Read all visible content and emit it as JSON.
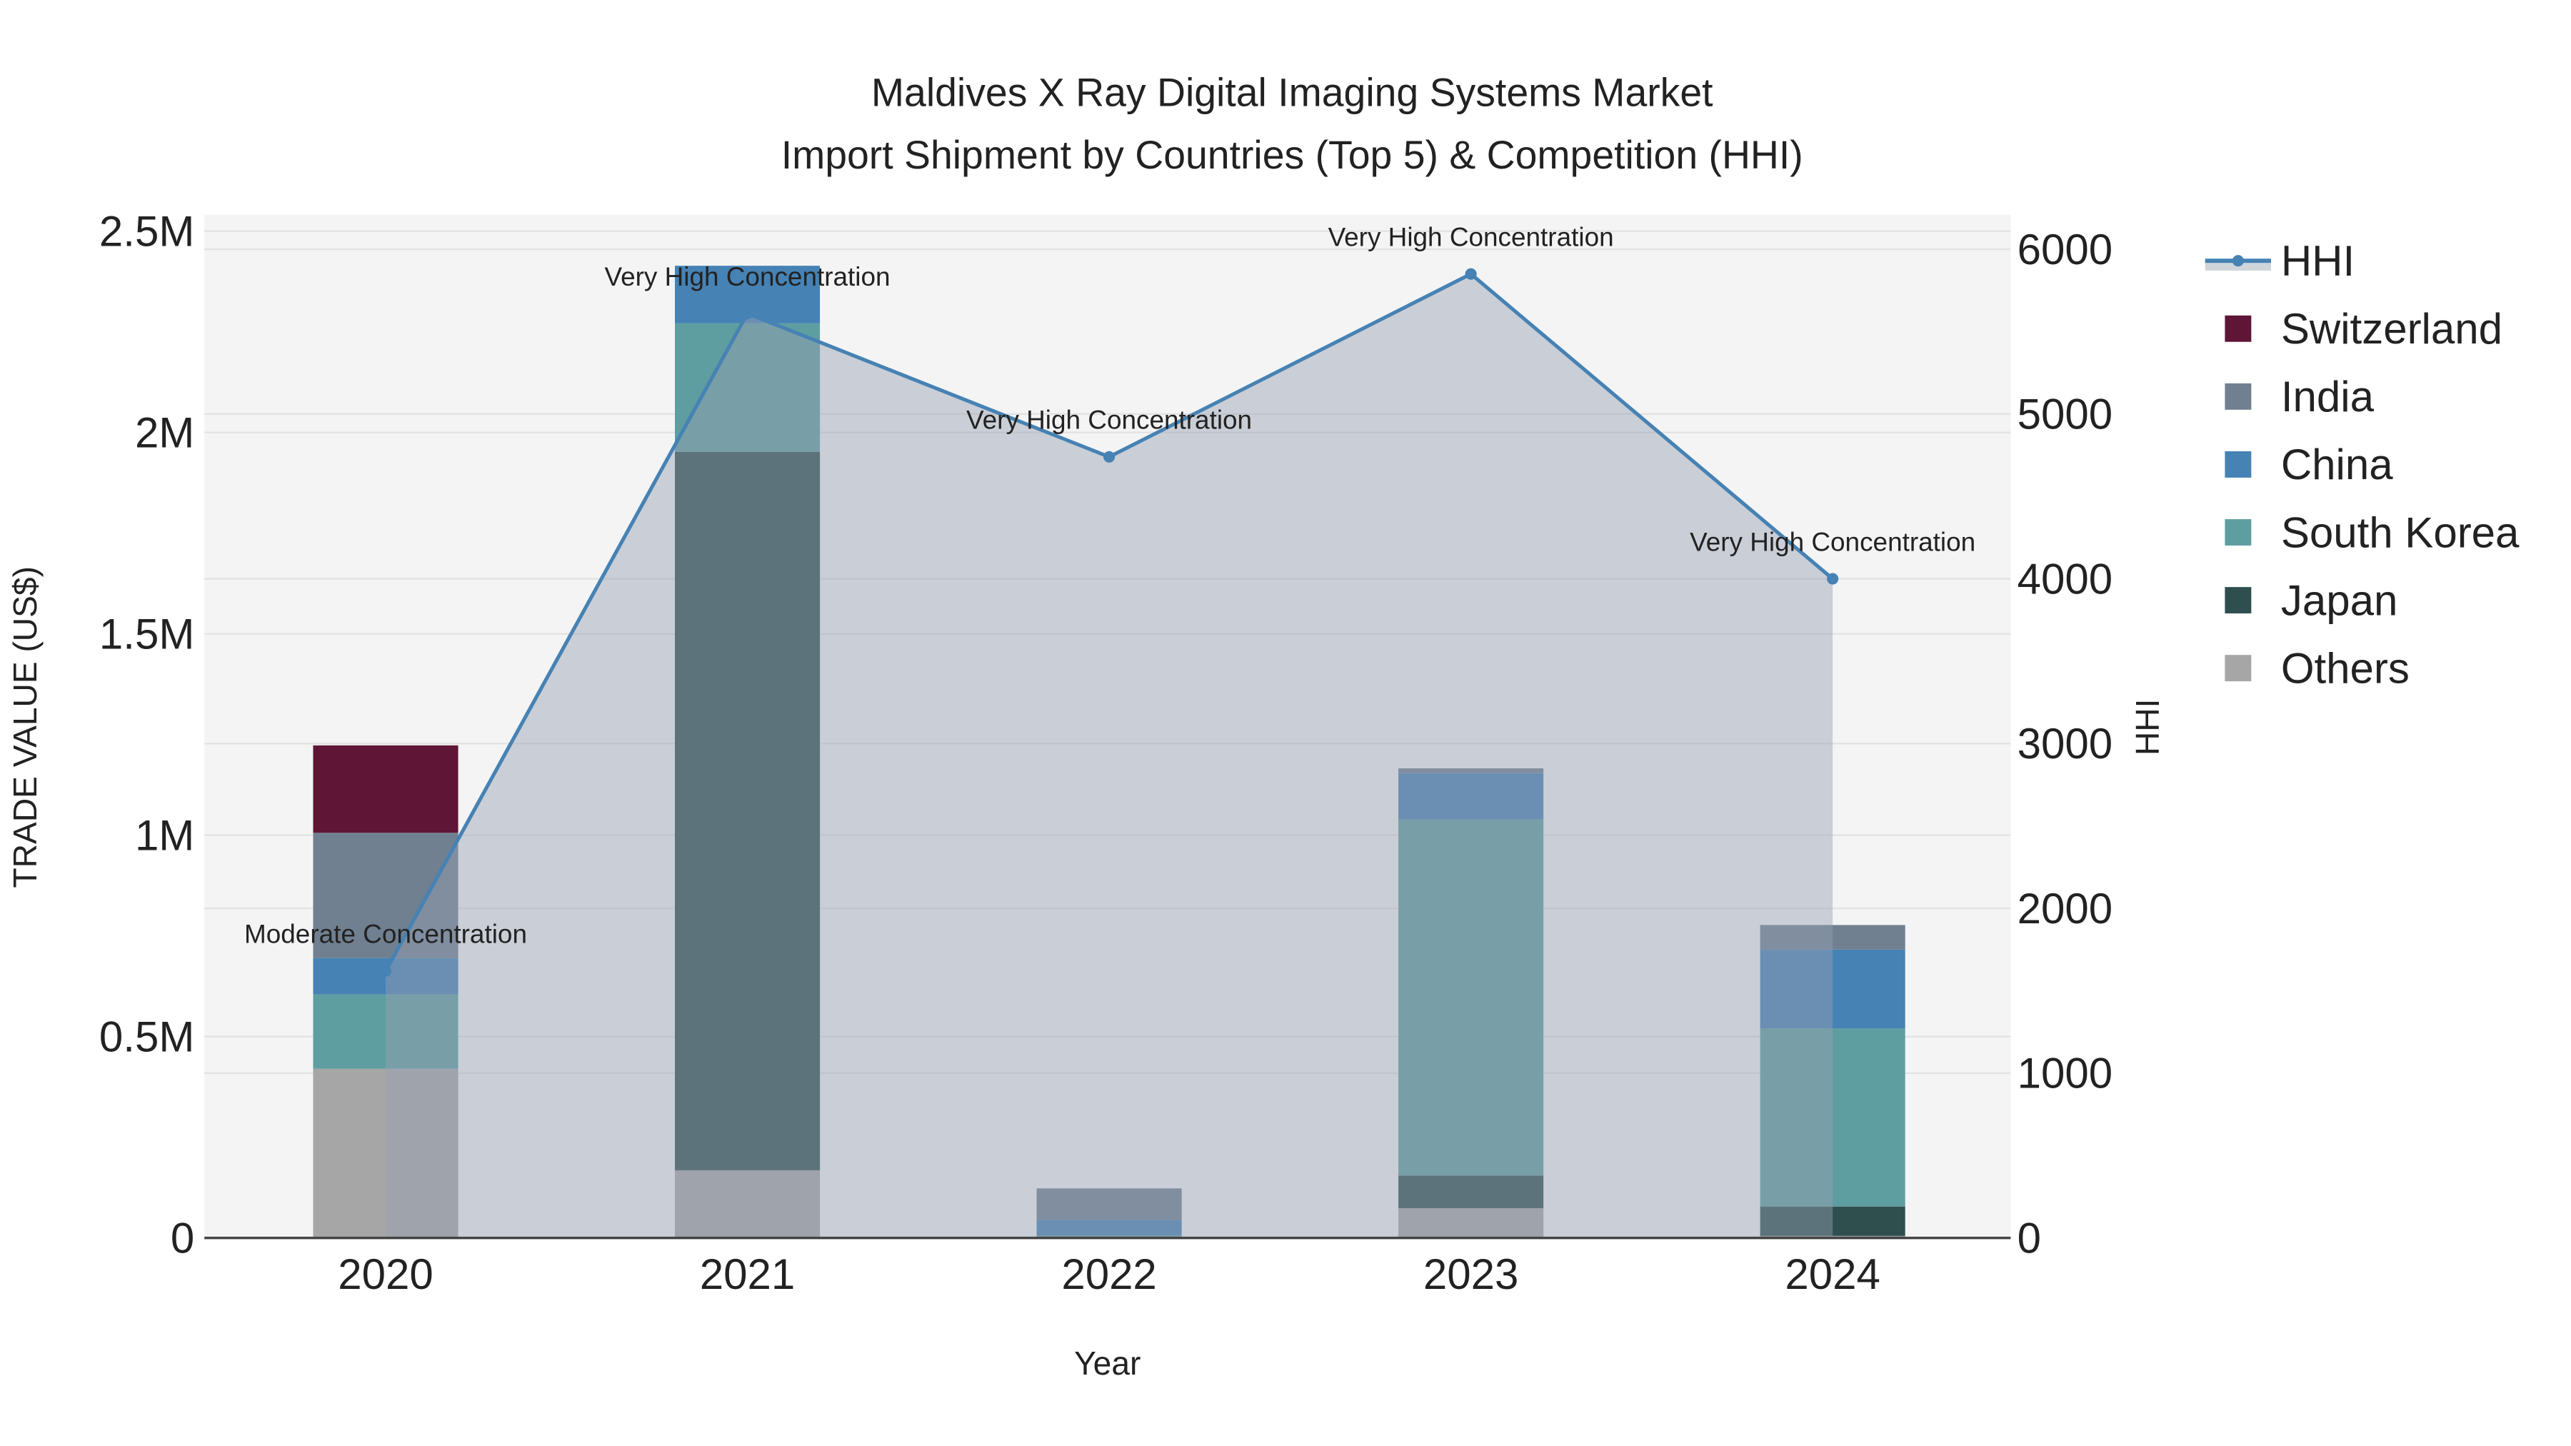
{
  "chart_data": {
    "type": "bar",
    "title_line1": "Maldives X Ray Digital Imaging Systems Market",
    "title_line2": "Import Shipment by Countries (Top 5) & Competition (HHI)",
    "xlabel": "Year",
    "ylabel": "TRADE VALUE (US$)",
    "y2label": "HHI",
    "categories": [
      "2020",
      "2021",
      "2022",
      "2023",
      "2024"
    ],
    "ylim": [
      0,
      2500000
    ],
    "y2lim": [
      0,
      6000
    ],
    "yticks": [
      {
        "value": 0,
        "label": "0"
      },
      {
        "value": 500000,
        "label": "0.5M"
      },
      {
        "value": 1000000,
        "label": "1M"
      },
      {
        "value": 1500000,
        "label": "1.5M"
      },
      {
        "value": 2000000,
        "label": "2M"
      },
      {
        "value": 2500000,
        "label": "2.5M"
      }
    ],
    "y2ticks": [
      {
        "value": 0,
        "label": "0"
      },
      {
        "value": 1000,
        "label": "1000"
      },
      {
        "value": 2000,
        "label": "2000"
      },
      {
        "value": 3000,
        "label": "3000"
      },
      {
        "value": 4000,
        "label": "4000"
      },
      {
        "value": 5000,
        "label": "5000"
      },
      {
        "value": 6000,
        "label": "6000"
      }
    ],
    "series": [
      {
        "name": "Others",
        "color": "#a6a6a6",
        "values": [
          420000,
          168000,
          0,
          74000,
          5000
        ]
      },
      {
        "name": "Japan",
        "color": "#2f4f4f",
        "values": [
          0,
          1784000,
          0,
          81000,
          73000
        ]
      },
      {
        "name": "South Korea",
        "color": "#5f9ea0",
        "values": [
          185000,
          319000,
          6000,
          884000,
          442000
        ]
      },
      {
        "name": "China",
        "color": "#4682b4",
        "values": [
          90000,
          143000,
          39000,
          115000,
          196000
        ]
      },
      {
        "name": "India",
        "color": "#708090",
        "values": [
          311000,
          0,
          78000,
          12000,
          61000
        ]
      },
      {
        "name": "Switzerland",
        "color": "#5f1536",
        "values": [
          217000,
          0,
          0,
          0,
          0
        ]
      }
    ],
    "hhi": {
      "name": "HHI",
      "color": "#4682b4",
      "values": [
        1620,
        5610,
        4740,
        5850,
        4000
      ],
      "annotations": [
        "Moderate Concentration",
        "Very High Concentration",
        "Very High Concentration",
        "Very High Concentration",
        "Very High Concentration"
      ]
    },
    "legend": [
      "HHI",
      "Switzerland",
      "India",
      "China",
      "South Korea",
      "Japan",
      "Others"
    ],
    "legend_placement": "right",
    "grid": true
  }
}
